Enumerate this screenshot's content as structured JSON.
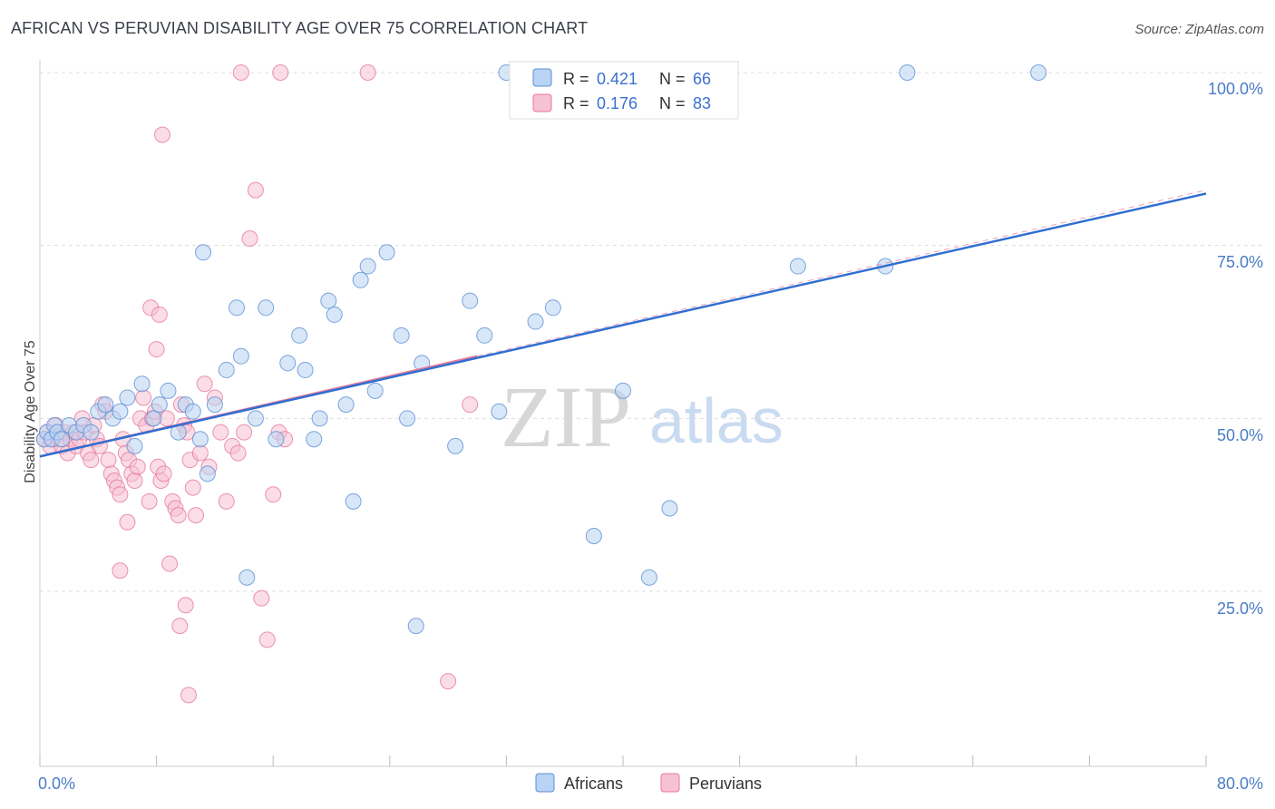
{
  "title": "AFRICAN VS PERUVIAN DISABILITY AGE OVER 75 CORRELATION CHART",
  "source": "Source: ZipAtlas.com",
  "watermark": {
    "zip": "ZIP",
    "atlas": "atlas"
  },
  "colors": {
    "africans": "#5b8fd6",
    "africans_fill": "#b8d3f3",
    "peruvians": "#e8789c",
    "peruvians_fill": "#f6c1d2",
    "grid": "#dddddd",
    "tick_text": "#4a7cc7"
  },
  "legend": {
    "rows": [
      {
        "r_label": "R =",
        "r_value": "0.421",
        "n_label": "N =",
        "n_value": "66"
      },
      {
        "r_label": "R =",
        "r_value": "0.176",
        "n_label": "N =",
        "n_value": "83"
      }
    ],
    "bottom": [
      "Africans",
      "Peruvians"
    ]
  },
  "chart_data": {
    "type": "scatter",
    "title": "AFRICAN VS PERUVIAN DISABILITY AGE OVER 75 CORRELATION CHART",
    "xlabel": "",
    "ylabel": "Disability Age Over 75",
    "xlim": [
      0,
      80
    ],
    "ylim": [
      0,
      105
    ],
    "x_tick_labels": [
      "0.0%",
      "80.0%"
    ],
    "y_ticks": [
      25,
      50,
      75,
      100
    ],
    "y_tick_labels": [
      "25.0%",
      "50.0%",
      "75.0%",
      "100.0%"
    ],
    "grid": true,
    "legend_position": "top-center",
    "series": [
      {
        "name": "Africans",
        "r": 0.421,
        "n": 66,
        "trend": {
          "x": [
            0,
            80
          ],
          "y": [
            44.5,
            82.5
          ]
        },
        "points": [
          [
            0.3,
            47
          ],
          [
            0.5,
            48
          ],
          [
            0.8,
            47
          ],
          [
            1.0,
            49
          ],
          [
            1.2,
            48
          ],
          [
            1.5,
            47
          ],
          [
            2.0,
            49
          ],
          [
            2.5,
            48
          ],
          [
            3.0,
            49
          ],
          [
            3.5,
            48
          ],
          [
            4.0,
            51
          ],
          [
            4.5,
            52
          ],
          [
            5.0,
            50
          ],
          [
            5.5,
            51
          ],
          [
            6.0,
            53
          ],
          [
            6.5,
            46
          ],
          [
            7.0,
            55
          ],
          [
            7.8,
            50
          ],
          [
            8.2,
            52
          ],
          [
            8.8,
            54
          ],
          [
            9.5,
            48
          ],
          [
            10.0,
            52
          ],
          [
            10.5,
            51
          ],
          [
            11.0,
            47
          ],
          [
            11.5,
            42
          ],
          [
            11.2,
            74
          ],
          [
            12.0,
            52
          ],
          [
            12.8,
            57
          ],
          [
            13.5,
            66
          ],
          [
            13.8,
            59
          ],
          [
            14.2,
            27
          ],
          [
            14.8,
            50
          ],
          [
            15.5,
            66
          ],
          [
            16.2,
            47
          ],
          [
            17.0,
            58
          ],
          [
            17.8,
            62
          ],
          [
            18.2,
            57
          ],
          [
            18.8,
            47
          ],
          [
            19.2,
            50
          ],
          [
            19.8,
            67
          ],
          [
            20.2,
            65
          ],
          [
            21.0,
            52
          ],
          [
            21.5,
            38
          ],
          [
            22.0,
            70
          ],
          [
            22.5,
            72
          ],
          [
            23.0,
            54
          ],
          [
            23.8,
            74
          ],
          [
            24.8,
            62
          ],
          [
            25.2,
            50
          ],
          [
            25.8,
            20
          ],
          [
            26.2,
            58
          ],
          [
            28.5,
            46
          ],
          [
            29.5,
            67
          ],
          [
            30.5,
            62
          ],
          [
            31.5,
            51
          ],
          [
            32.0,
            100
          ],
          [
            34.0,
            64
          ],
          [
            35.2,
            66
          ],
          [
            38.0,
            33
          ],
          [
            40.0,
            54
          ],
          [
            41.8,
            27
          ],
          [
            43.2,
            37
          ],
          [
            52.0,
            72
          ],
          [
            58.0,
            72
          ],
          [
            59.5,
            100
          ],
          [
            68.5,
            100
          ]
        ]
      },
      {
        "name": "Peruvians",
        "r": 0.176,
        "n": 83,
        "trend": {
          "x": [
            0,
            30
          ],
          "y": [
            44.5,
            59.0
          ]
        },
        "trend_dashed": {
          "x": [
            30,
            80
          ],
          "y": [
            59.0,
            83.0
          ]
        },
        "points": [
          [
            0.3,
            47
          ],
          [
            0.5,
            48
          ],
          [
            0.7,
            46
          ],
          [
            0.9,
            47
          ],
          [
            1.1,
            49
          ],
          [
            1.3,
            47
          ],
          [
            1.5,
            46
          ],
          [
            1.7,
            48
          ],
          [
            1.9,
            45
          ],
          [
            2.1,
            47
          ],
          [
            2.3,
            48
          ],
          [
            2.5,
            46
          ],
          [
            2.7,
            47
          ],
          [
            2.9,
            50
          ],
          [
            3.1,
            48
          ],
          [
            3.3,
            45
          ],
          [
            3.5,
            44
          ],
          [
            3.7,
            49
          ],
          [
            3.9,
            47
          ],
          [
            4.1,
            46
          ],
          [
            4.3,
            52
          ],
          [
            4.5,
            51
          ],
          [
            4.7,
            44
          ],
          [
            4.9,
            42
          ],
          [
            5.1,
            41
          ],
          [
            5.3,
            40
          ],
          [
            5.5,
            39
          ],
          [
            5.7,
            47
          ],
          [
            5.9,
            45
          ],
          [
            6.1,
            44
          ],
          [
            6.3,
            42
          ],
          [
            6.5,
            41
          ],
          [
            6.7,
            43
          ],
          [
            6.9,
            50
          ],
          [
            7.1,
            53
          ],
          [
            7.3,
            49
          ],
          [
            7.5,
            38
          ],
          [
            7.7,
            50
          ],
          [
            7.9,
            51
          ],
          [
            8.1,
            43
          ],
          [
            8.3,
            41
          ],
          [
            8.5,
            42
          ],
          [
            8.7,
            50
          ],
          [
            8.9,
            29
          ],
          [
            9.1,
            38
          ],
          [
            9.3,
            37
          ],
          [
            9.5,
            36
          ],
          [
            9.7,
            52
          ],
          [
            9.9,
            49
          ],
          [
            10.1,
            48
          ],
          [
            10.3,
            44
          ],
          [
            10.5,
            40
          ],
          [
            10.7,
            36
          ],
          [
            11.0,
            45
          ],
          [
            11.3,
            55
          ],
          [
            11.6,
            43
          ],
          [
            12.0,
            53
          ],
          [
            12.4,
            48
          ],
          [
            12.8,
            38
          ],
          [
            13.2,
            46
          ],
          [
            13.6,
            45
          ],
          [
            14.0,
            48
          ],
          [
            14.4,
            76
          ],
          [
            14.8,
            83
          ],
          [
            15.2,
            24
          ],
          [
            15.6,
            18
          ],
          [
            16.0,
            39
          ],
          [
            16.4,
            48
          ],
          [
            16.8,
            47
          ],
          [
            7.6,
            66
          ],
          [
            8.2,
            65
          ],
          [
            8.0,
            60
          ],
          [
            8.4,
            91
          ],
          [
            13.8,
            100
          ],
          [
            16.5,
            100
          ],
          [
            22.5,
            100
          ],
          [
            9.6,
            20
          ],
          [
            10.0,
            23
          ],
          [
            10.2,
            10
          ],
          [
            29.5,
            52
          ],
          [
            28.0,
            12
          ],
          [
            6.0,
            35
          ],
          [
            5.5,
            28
          ]
        ]
      }
    ]
  }
}
